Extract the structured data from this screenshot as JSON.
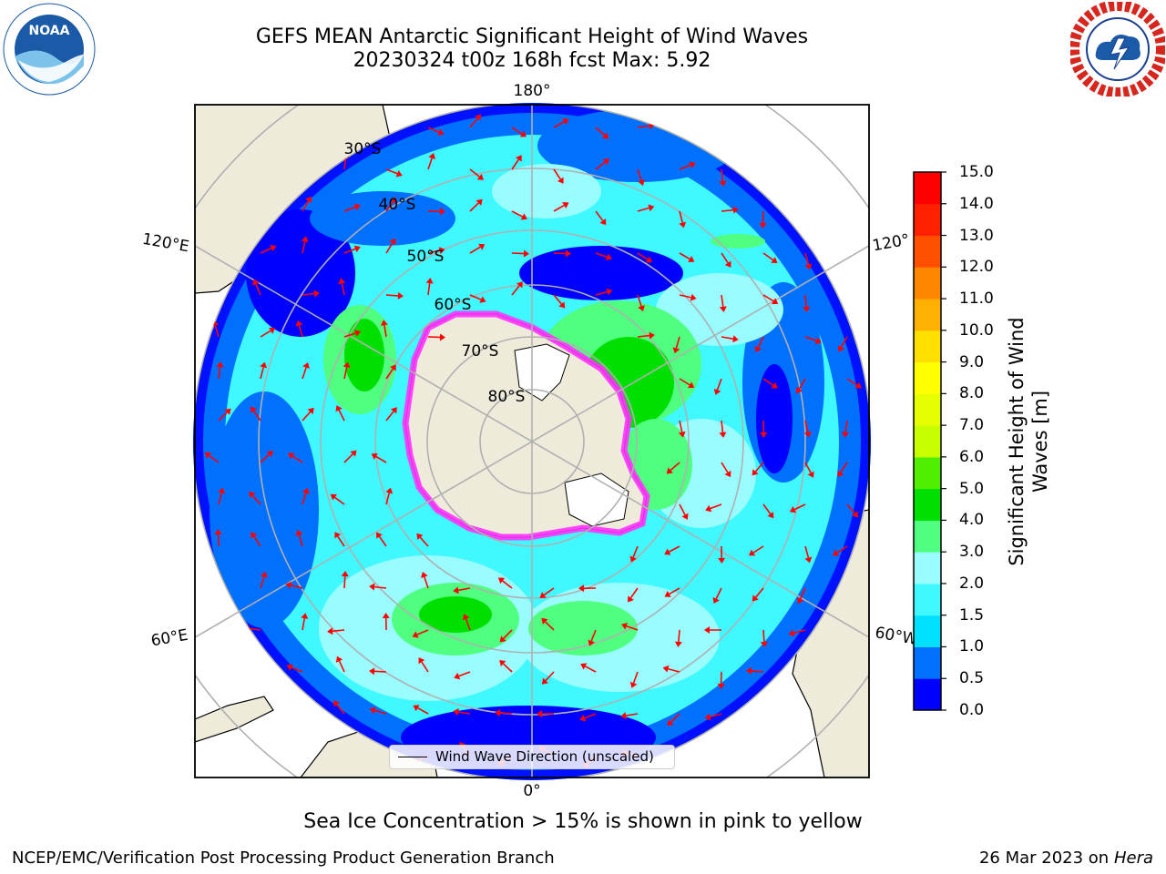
{
  "title": {
    "line1": "GEFS MEAN Antarctic Significant Height of Wind Waves",
    "line2": "20230324 t00z 168h fcst   Max: 5.92"
  },
  "logos": {
    "left": {
      "icon": "noaa-logo",
      "text": "NOAA"
    },
    "right": {
      "icon": "nws-logo-icon"
    }
  },
  "map": {
    "projection": "south polar stereographic",
    "longitude_labels": {
      "top": "180°",
      "bottom": "0°",
      "upper_left": "120°E",
      "lower_left": "60°E",
      "upper_right": "120°",
      "lower_right": "60°W"
    },
    "latitude_labels": [
      "30°S",
      "40°S",
      "50°S",
      "60°S",
      "70°S",
      "80°S"
    ],
    "legend_label": "Wind Wave Direction (unscaled)",
    "colors": {
      "land": "#efebdb",
      "antarctic_ice_shelf": "#ffffff",
      "sea_ice": "#ff33ff",
      "arrow": "#ff0000",
      "graticule": "#b0b0b0"
    }
  },
  "colorbar": {
    "label_line1": "Significant Height of Wind",
    "label_line2": "Waves [m]",
    "ticks": [
      "0.0",
      "0.5",
      "1.0",
      "1.5",
      "2.0",
      "3.0",
      "4.0",
      "5.0",
      "6.0",
      "7.0",
      "8.0",
      "9.0",
      "10.0",
      "11.0",
      "12.0",
      "13.0",
      "14.0",
      "15.0"
    ],
    "colors": [
      "#0000ff",
      "#0070ff",
      "#00e1ff",
      "#40f8ff",
      "#99fdff",
      "#50ff80",
      "#00e000",
      "#50ee00",
      "#c8ff00",
      "#e6ff00",
      "#ffff00",
      "#ffe000",
      "#ffb000",
      "#ff8800",
      "#ff5000",
      "#ff2000",
      "#ff0000"
    ]
  },
  "footnote": "Sea Ice Concentration > 15% is shown in pink to yellow",
  "credits": {
    "left": "NCEP/EMC/Verification Post Processing Product Generation Branch",
    "right_date": "26 Mar 2023 on",
    "right_host": "Hera"
  }
}
